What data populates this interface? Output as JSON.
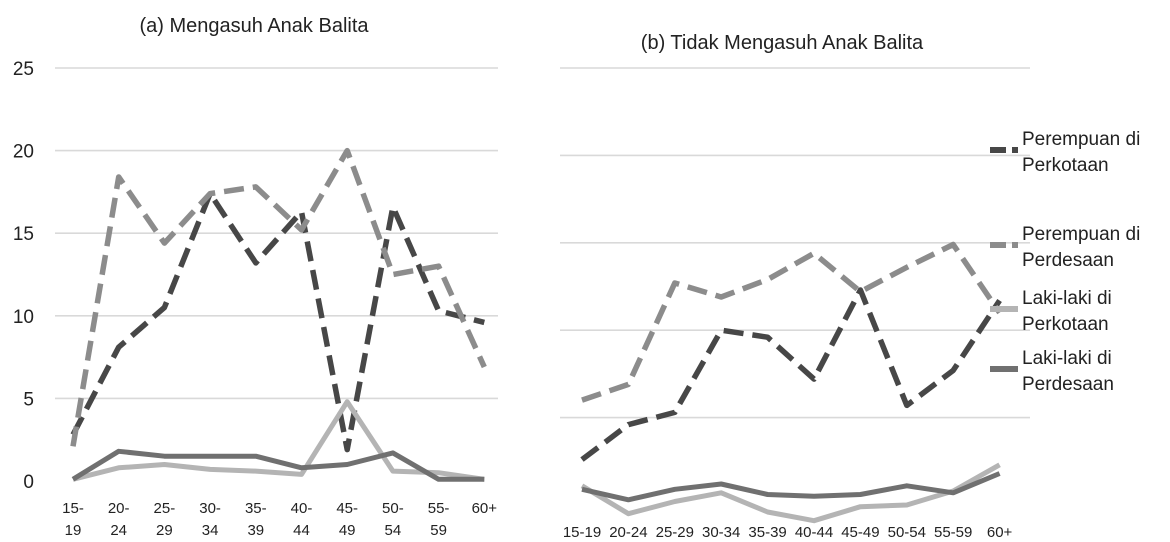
{
  "chart_data": [
    {
      "type": "line",
      "title": "(a) Mengasuh Anak Balita",
      "categories": [
        [
          "15-",
          "19"
        ],
        [
          "20-",
          "24"
        ],
        [
          "25-",
          "29"
        ],
        [
          "30-",
          "34"
        ],
        [
          "35-",
          "39"
        ],
        [
          "40-",
          "44"
        ],
        [
          "45-",
          "49"
        ],
        [
          "50-",
          "54"
        ],
        [
          "55-",
          "59"
        ],
        [
          "60+"
        ]
      ],
      "yticks": [
        "0",
        "5",
        "10",
        "15",
        "20",
        "25"
      ],
      "ylim": [
        0,
        25
      ],
      "grid": true,
      "series": [
        {
          "name": "Perempuan di Perkotaan",
          "values": [
            2.8,
            8.1,
            10.5,
            17.4,
            13.2,
            16.3,
            1.9,
            16.6,
            10.3,
            9.6
          ]
        },
        {
          "name": "Perempuan di Perdesaan",
          "values": [
            2.1,
            18.4,
            14.4,
            17.4,
            17.8,
            15.2,
            20.0,
            12.5,
            13.0,
            6.9
          ]
        },
        {
          "name": "Laki-laki di Perkotaan",
          "values": [
            0.1,
            0.8,
            1.0,
            0.7,
            0.6,
            0.4,
            4.8,
            0.6,
            0.5,
            0.1
          ]
        },
        {
          "name": "Laki-laki di Perdesaan",
          "values": [
            0.1,
            1.8,
            1.5,
            1.5,
            1.5,
            0.8,
            1.0,
            1.7,
            0.1,
            0.1
          ]
        }
      ]
    },
    {
      "type": "line",
      "title": "(b) Tidak Mengasuh Anak Balita",
      "categories": [
        [
          "15-19"
        ],
        [
          "20-24"
        ],
        [
          "25-29"
        ],
        [
          "30-34"
        ],
        [
          "35-39"
        ],
        [
          "40-44"
        ],
        [
          "45-49"
        ],
        [
          "50-54"
        ],
        [
          "55-59"
        ],
        [
          "60+"
        ]
      ],
      "ylim": [
        0,
        25
      ],
      "grid": true,
      "legend": "right",
      "series": [
        {
          "name": "Perempuan di Perkotaan",
          "values": [
            2.6,
            4.6,
            5.3,
            10.0,
            9.6,
            7.2,
            12.3,
            5.7,
            7.7,
            11.7
          ]
        },
        {
          "name": "Perempuan di Perdesaan",
          "values": [
            6.0,
            6.9,
            12.7,
            11.9,
            12.9,
            14.4,
            12.2,
            13.6,
            14.9,
            11.0
          ]
        },
        {
          "name": "Laki-laki di Perkotaan",
          "values": [
            1.1,
            -0.5,
            0.2,
            0.7,
            -0.4,
            -0.9,
            -0.1,
            0.0,
            0.8,
            2.3
          ]
        },
        {
          "name": "Laki-laki di Perdesaan",
          "values": [
            0.9,
            0.3,
            0.9,
            1.2,
            0.6,
            0.5,
            0.6,
            1.1,
            0.7,
            1.8
          ]
        }
      ]
    }
  ],
  "legend": [
    {
      "lines": [
        "Perempuan di",
        "Perkotaan"
      ],
      "color": "#474747",
      "dash": "dash"
    },
    {
      "lines": [
        "Perempuan di",
        "Perdesaan"
      ],
      "color": "#8c8c8c",
      "dash": "dash"
    },
    {
      "lines": [
        "Laki-laki di",
        "Perkotaan"
      ],
      "color": "#b4b4b4",
      "dash": "solid"
    },
    {
      "lines": [
        "Laki-laki di",
        "Perdesaan"
      ],
      "color": "#707070",
      "dash": "solid"
    }
  ]
}
